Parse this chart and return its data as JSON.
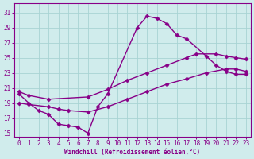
{
  "bg_color": "#d0ecec",
  "line_color": "#880088",
  "marker": "D",
  "markersize": 2.5,
  "linewidth": 1.0,
  "xlabel": "Windchill (Refroidissement éolien,°C)",
  "ylabel_ticks": [
    15,
    17,
    19,
    21,
    23,
    25,
    27,
    29,
    31
  ],
  "xticks": [
    0,
    1,
    2,
    3,
    4,
    5,
    6,
    7,
    8,
    9,
    10,
    11,
    12,
    13,
    14,
    15,
    16,
    17,
    18,
    19,
    20,
    21,
    22,
    23
  ],
  "xlim": [
    -0.5,
    23.5
  ],
  "ylim": [
    14.5,
    32.2
  ],
  "grid_color": "#a8d4d4",
  "s1x": [
    0,
    1,
    2,
    3,
    4,
    5,
    6,
    7,
    8,
    9,
    12,
    13,
    14,
    15,
    16,
    17,
    19,
    20,
    21,
    22,
    23
  ],
  "s1y": [
    20.2,
    19.0,
    18.0,
    17.5,
    16.2,
    16.0,
    15.8,
    15.0,
    18.5,
    20.2,
    29.0,
    30.5,
    30.2,
    29.5,
    28.0,
    27.5,
    25.2,
    24.0,
    23.2,
    22.8,
    22.8
  ],
  "s2x": [
    0,
    1,
    3,
    7,
    9,
    11,
    13,
    15,
    17,
    18,
    20,
    21,
    22,
    23
  ],
  "s2y": [
    20.5,
    20.0,
    19.5,
    19.8,
    20.8,
    22.0,
    23.0,
    24.0,
    25.0,
    25.5,
    25.5,
    25.2,
    25.0,
    24.8
  ],
  "s3x": [
    0,
    1,
    3,
    4,
    5,
    7,
    9,
    11,
    13,
    15,
    17,
    19,
    21,
    22,
    23
  ],
  "s3y": [
    19.0,
    18.8,
    18.5,
    18.2,
    18.0,
    17.8,
    18.5,
    19.5,
    20.5,
    21.5,
    22.2,
    23.0,
    23.5,
    23.5,
    23.2
  ]
}
